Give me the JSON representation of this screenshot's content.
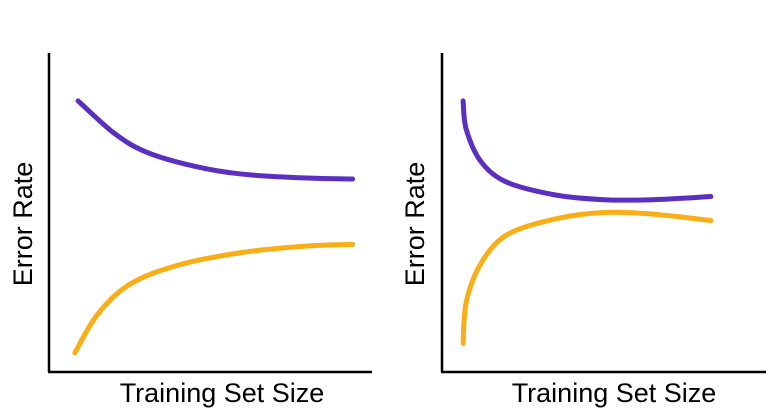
{
  "colors": {
    "background": "#ffffff",
    "axis": "#000000",
    "upper_curve": "#5b2fc0",
    "lower_curve": "#f9ae16"
  },
  "chart_data": [
    {
      "type": "line",
      "xlabel": "Training Set Size",
      "ylabel": "Error Rate",
      "axis_ticks": false,
      "grid": false,
      "legend": "none",
      "xlim": [
        0,
        10
      ],
      "ylim": [
        0,
        10
      ],
      "series": [
        {
          "color": "#5b2fc0",
          "points": [
            [
              0.9,
              8.5
            ],
            [
              2.0,
              7.5
            ],
            [
              3.0,
              6.9
            ],
            [
              4.5,
              6.45
            ],
            [
              6.0,
              6.2
            ],
            [
              8.0,
              6.08
            ],
            [
              9.4,
              6.05
            ]
          ]
        },
        {
          "color": "#f9ae16",
          "points": [
            [
              0.8,
              0.6
            ],
            [
              1.5,
              1.8
            ],
            [
              2.5,
              2.75
            ],
            [
              4.0,
              3.35
            ],
            [
              6.0,
              3.75
            ],
            [
              8.0,
              3.95
            ],
            [
              9.4,
              4.0
            ]
          ]
        }
      ]
    },
    {
      "type": "line",
      "xlabel": "Training Set Size",
      "ylabel": "Error Rate",
      "axis_ticks": false,
      "grid": false,
      "legend": "none",
      "xlim": [
        0,
        10
      ],
      "ylim": [
        0,
        10
      ],
      "series": [
        {
          "color": "#5b2fc0",
          "points": [
            [
              0.65,
              8.5
            ],
            [
              0.75,
              7.6
            ],
            [
              1.2,
              6.6
            ],
            [
              2.0,
              5.95
            ],
            [
              3.5,
              5.55
            ],
            [
              5.0,
              5.4
            ],
            [
              6.5,
              5.4
            ],
            [
              8.3,
              5.5
            ]
          ]
        },
        {
          "color": "#f9ae16",
          "points": [
            [
              0.65,
              0.9
            ],
            [
              0.75,
              2.2
            ],
            [
              1.2,
              3.4
            ],
            [
              2.0,
              4.3
            ],
            [
              3.5,
              4.8
            ],
            [
              5.0,
              5.0
            ],
            [
              6.5,
              4.95
            ],
            [
              8.3,
              4.75
            ]
          ]
        }
      ]
    }
  ]
}
